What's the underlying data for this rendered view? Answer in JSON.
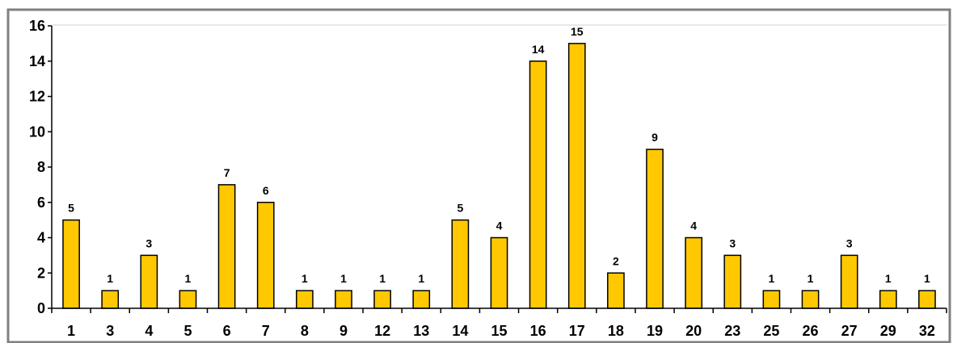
{
  "chart_data": {
    "type": "bar",
    "title": "",
    "xlabel": "",
    "ylabel": "",
    "categories": [
      "1",
      "3",
      "4",
      "5",
      "6",
      "7",
      "8",
      "9",
      "12",
      "13",
      "14",
      "15",
      "16",
      "17",
      "18",
      "19",
      "20",
      "23",
      "25",
      "26",
      "27",
      "29",
      "32"
    ],
    "values": [
      5,
      1,
      3,
      1,
      7,
      6,
      1,
      1,
      1,
      1,
      5,
      4,
      14,
      15,
      2,
      9,
      4,
      3,
      1,
      1,
      3,
      1,
      1
    ],
    "ylim": [
      0,
      16
    ],
    "yticks": [
      "0",
      "2",
      "4",
      "6",
      "8",
      "10",
      "12",
      "14",
      "16"
    ],
    "grid": false,
    "legend": "none",
    "data_labels": true,
    "colors": {
      "bar_fill": "#FFC800",
      "bar_stroke": "#000000",
      "plot_background": "#FFFFFF",
      "frame": "#808080",
      "axis": "#000000"
    }
  }
}
